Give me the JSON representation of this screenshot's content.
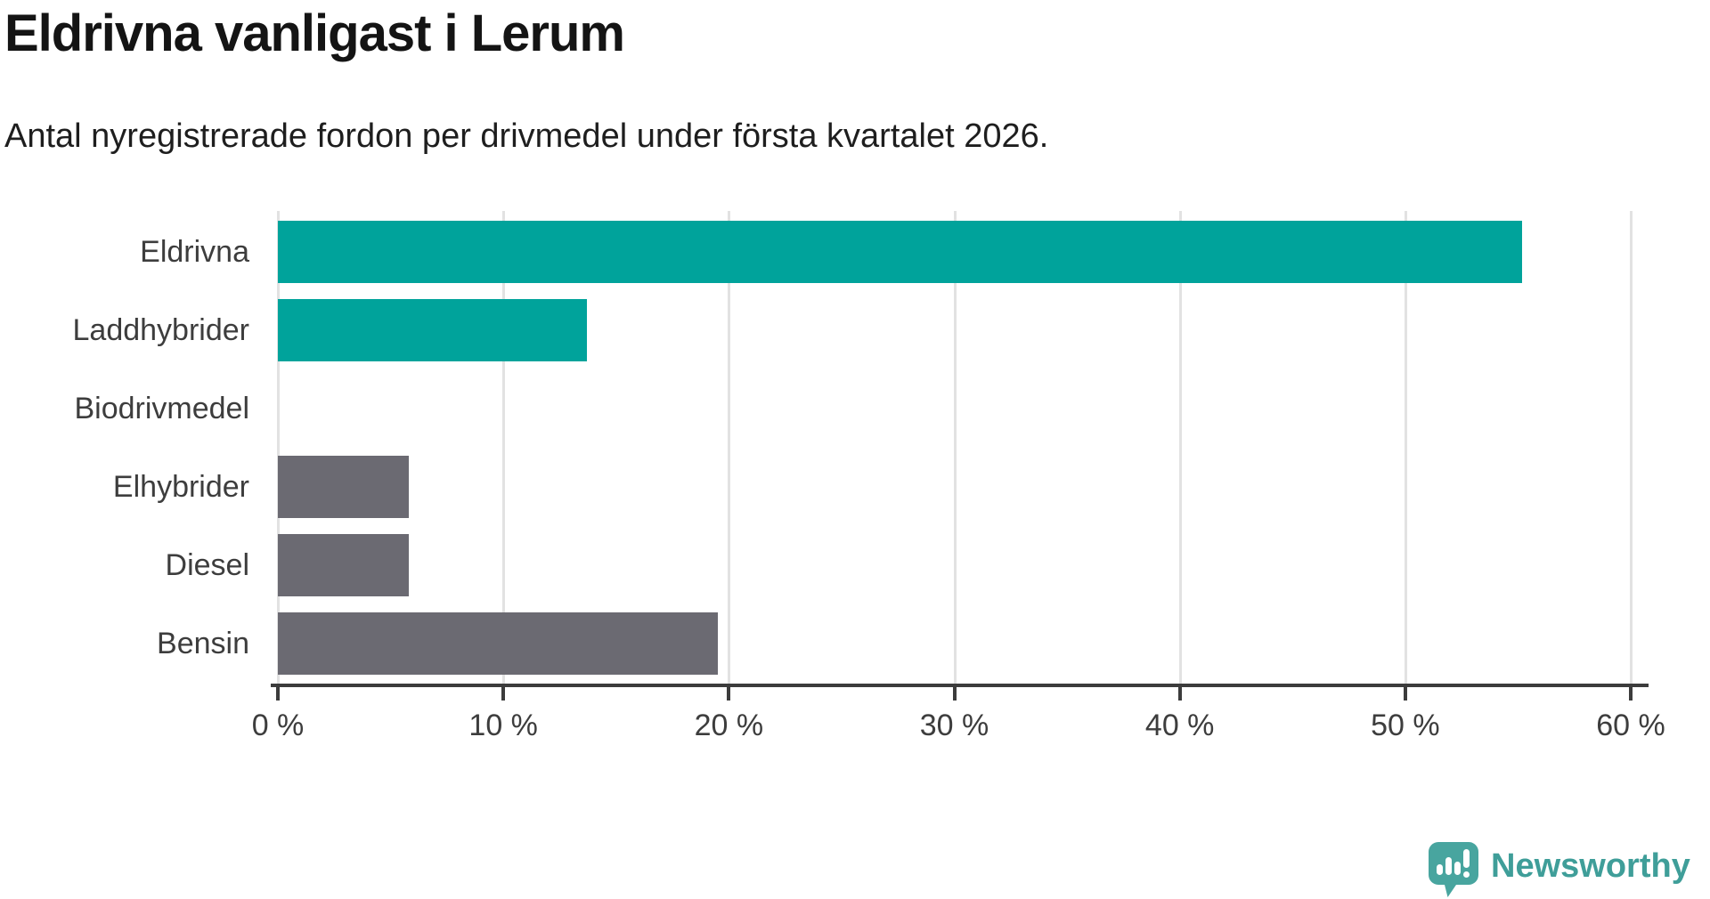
{
  "header": {
    "title": "Eldrivna vanligast i Lerum",
    "subtitle": "Antal nyregistrerade fordon per drivmedel under första kvartalet 2026."
  },
  "chart_data": {
    "type": "bar",
    "orientation": "horizontal",
    "title": "Eldrivna vanligast i Lerum",
    "subtitle": "Antal nyregistrerade fordon per drivmedel under första kvartalet 2026.",
    "categories": [
      "Eldrivna",
      "Laddhybrider",
      "Biodrivmedel",
      "Elhybrider",
      "Diesel",
      "Bensin"
    ],
    "values": [
      55.2,
      13.7,
      0,
      5.8,
      5.8,
      19.5
    ],
    "unit": "%",
    "bar_colors": [
      "#00a39b",
      "#00a39b",
      "#6b6a72",
      "#6b6a72",
      "#6b6a72",
      "#6b6a72"
    ],
    "xlabel": "",
    "ylabel": "",
    "xlim": [
      0,
      60
    ],
    "x_ticks": [
      0,
      10,
      20,
      30,
      40,
      50,
      60
    ],
    "x_tick_labels": [
      "0 %",
      "10 %",
      "20 %",
      "30 %",
      "40 %",
      "50 %",
      "60 %"
    ],
    "grid": "vertical-only",
    "legend": "none"
  },
  "colors": {
    "electric_accent": "#00a39b",
    "fossil_gray": "#6b6a72",
    "gridline": "#e2e2e2",
    "axis": "#3c3c3c"
  },
  "branding": {
    "logo_text": "Newsworthy",
    "logo_color": "#48a59f"
  }
}
